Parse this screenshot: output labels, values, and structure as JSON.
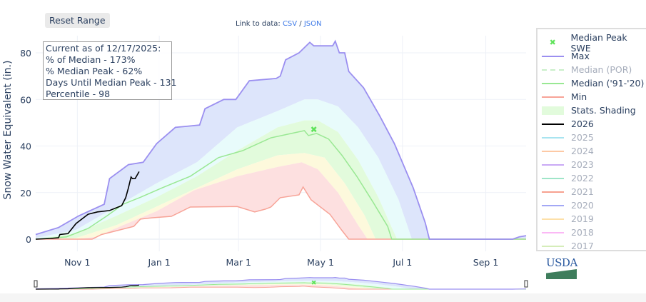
{
  "controls": {
    "reset_label": "Reset Range"
  },
  "links": {
    "prefix": "Link to data: ",
    "csv": "CSV",
    "sep": " / ",
    "json": "JSON"
  },
  "infobox": {
    "lines": [
      "Current as of 12/17/2025:",
      "% of Median - 173%",
      "% Median Peak - 62%",
      "Days Until Median Peak - 131",
      "Percentile - 98"
    ]
  },
  "logo": {
    "text": "USDA"
  },
  "legend": [
    {
      "label": "Median Peak SWE",
      "color": "#5fe35a",
      "kind": "marker",
      "dim": false
    },
    {
      "label": "Max",
      "color": "#9b8ff0",
      "kind": "line",
      "dim": false
    },
    {
      "label": "Median (POR)",
      "color": "#c9efc9",
      "kind": "dash",
      "dim": true
    },
    {
      "label": "Median ('91-'20)",
      "color": "#99e893",
      "kind": "line",
      "dim": false
    },
    {
      "label": "Min",
      "color": "#f7a397",
      "kind": "line",
      "dim": false
    },
    {
      "label": "Stats. Shading",
      "color": "#e2fbdc",
      "kind": "fill",
      "dim": false
    },
    {
      "label": "2026",
      "color": "#000000",
      "kind": "line",
      "dim": false
    },
    {
      "label": "2025",
      "color": "#a8e4f0",
      "kind": "line",
      "dim": true
    },
    {
      "label": "2024",
      "color": "#fdc9a5",
      "kind": "line",
      "dim": true
    },
    {
      "label": "2023",
      "color": "#c9a9f5",
      "kind": "line",
      "dim": true
    },
    {
      "label": "2022",
      "color": "#9fe5c8",
      "kind": "line",
      "dim": true
    },
    {
      "label": "2021",
      "color": "#f7a190",
      "kind": "line",
      "dim": true
    },
    {
      "label": "2020",
      "color": "#a3a8f5",
      "kind": "line",
      "dim": true
    },
    {
      "label": "2019",
      "color": "#fde0a8",
      "kind": "line",
      "dim": true
    },
    {
      "label": "2018",
      "color": "#fbb8f5",
      "kind": "line",
      "dim": true
    },
    {
      "label": "2017",
      "color": "#d5edb9",
      "kind": "line",
      "dim": true
    }
  ],
  "chart_data": {
    "type": "area",
    "title": "",
    "xlabel": "",
    "ylabel": "Snow Water Equivalent (in.)",
    "x_unit": "days since Oct 1",
    "xlim": [
      0,
      365
    ],
    "ylim": [
      0,
      88
    ],
    "yticks": [
      0,
      20,
      40,
      60,
      80
    ],
    "xticks": [
      {
        "day": 31,
        "label": "Nov 1"
      },
      {
        "day": 92,
        "label": "Jan 1"
      },
      {
        "day": 151,
        "label": "Mar 1"
      },
      {
        "day": 212,
        "label": "May 1"
      },
      {
        "day": 273,
        "label": "Jul 1"
      },
      {
        "day": 335,
        "label": "Sep 1"
      }
    ],
    "grid": true,
    "legend_position": "right",
    "bands": [
      {
        "name": "max-p90",
        "color": "#dde5fb"
      },
      {
        "name": "p90-p70",
        "color": "#e8fbfb"
      },
      {
        "name": "p70-p30",
        "color": "#e2fbdc"
      },
      {
        "name": "p30-p10",
        "color": "#fdf9dc"
      },
      {
        "name": "p10-min",
        "color": "#fde0e0"
      }
    ],
    "series": {
      "max": [
        [
          0,
          2
        ],
        [
          17,
          5
        ],
        [
          32,
          10
        ],
        [
          51,
          15
        ],
        [
          55,
          26
        ],
        [
          69,
          32
        ],
        [
          80,
          33
        ],
        [
          90,
          41
        ],
        [
          104,
          48
        ],
        [
          122,
          49
        ],
        [
          126,
          56
        ],
        [
          140,
          60
        ],
        [
          149,
          60
        ],
        [
          159,
          68
        ],
        [
          179,
          69
        ],
        [
          182,
          70
        ],
        [
          186,
          77
        ],
        [
          196,
          80
        ],
        [
          204,
          84.5
        ],
        [
          207,
          83
        ],
        [
          221,
          83
        ],
        [
          223,
          85
        ],
        [
          226,
          80
        ],
        [
          230,
          80
        ],
        [
          233,
          72
        ],
        [
          244,
          65
        ],
        [
          256,
          53
        ],
        [
          267,
          41
        ],
        [
          281,
          22
        ],
        [
          290,
          7
        ],
        [
          293,
          0
        ],
        [
          355,
          0
        ],
        [
          360,
          1
        ],
        [
          365,
          1.5
        ]
      ],
      "p90": [
        [
          0,
          0.5
        ],
        [
          30,
          4
        ],
        [
          60,
          14
        ],
        [
          90,
          24
        ],
        [
          120,
          33
        ],
        [
          150,
          48
        ],
        [
          180,
          55
        ],
        [
          200,
          60
        ],
        [
          210,
          60
        ],
        [
          225,
          57
        ],
        [
          240,
          48
        ],
        [
          255,
          35
        ],
        [
          270,
          17
        ],
        [
          280,
          0
        ],
        [
          365,
          0
        ]
      ],
      "p70": [
        [
          0,
          0
        ],
        [
          30,
          2.5
        ],
        [
          60,
          10
        ],
        [
          90,
          18
        ],
        [
          120,
          27
        ],
        [
          150,
          38
        ],
        [
          180,
          48
        ],
        [
          200,
          51
        ],
        [
          210,
          51
        ],
        [
          225,
          46
        ],
        [
          240,
          34
        ],
        [
          255,
          18
        ],
        [
          265,
          5
        ],
        [
          269,
          0
        ],
        [
          365,
          0
        ]
      ],
      "p30": [
        [
          0,
          0
        ],
        [
          30,
          0.5
        ],
        [
          60,
          6
        ],
        [
          90,
          14
        ],
        [
          120,
          22
        ],
        [
          150,
          30
        ],
        [
          180,
          36
        ],
        [
          200,
          37
        ],
        [
          215,
          35
        ],
        [
          230,
          24
        ],
        [
          245,
          10
        ],
        [
          253,
          0
        ],
        [
          365,
          0
        ]
      ],
      "p10": [
        [
          0,
          0
        ],
        [
          30,
          0
        ],
        [
          45,
          1
        ],
        [
          65,
          6
        ],
        [
          90,
          12
        ],
        [
          118,
          21
        ],
        [
          150,
          27
        ],
        [
          180,
          31
        ],
        [
          198,
          33
        ],
        [
          210,
          30
        ],
        [
          225,
          20
        ],
        [
          240,
          6
        ],
        [
          247,
          0
        ],
        [
          365,
          0
        ]
      ],
      "median": [
        [
          0,
          0
        ],
        [
          23,
          1
        ],
        [
          39,
          4.6
        ],
        [
          53,
          10
        ],
        [
          65,
          15
        ],
        [
          78,
          18
        ],
        [
          94,
          22
        ],
        [
          115,
          27
        ],
        [
          136,
          35
        ],
        [
          154,
          38
        ],
        [
          175,
          43.5
        ],
        [
          200,
          46.6
        ],
        [
          203,
          44.5
        ],
        [
          209,
          45.4
        ],
        [
          218,
          43
        ],
        [
          228,
          36
        ],
        [
          239,
          27
        ],
        [
          251,
          16
        ],
        [
          262,
          5.5
        ],
        [
          265,
          0
        ],
        [
          365,
          0
        ]
      ],
      "min": [
        [
          0,
          0
        ],
        [
          42,
          0
        ],
        [
          49,
          2
        ],
        [
          73,
          5.5
        ],
        [
          78,
          8.6
        ],
        [
          87,
          9.2
        ],
        [
          101,
          9.8
        ],
        [
          115,
          13.8
        ],
        [
          150,
          14
        ],
        [
          163,
          11.7
        ],
        [
          171,
          12.9
        ],
        [
          175,
          13.8
        ],
        [
          182,
          17.8
        ],
        [
          196,
          19
        ],
        [
          199,
          22.4
        ],
        [
          205,
          16.9
        ],
        [
          219,
          10.7
        ],
        [
          228,
          3.7
        ],
        [
          233,
          0
        ],
        [
          365,
          0
        ]
      ],
      "current_2026": [
        [
          0,
          0
        ],
        [
          11,
          0.3
        ],
        [
          17,
          0.6
        ],
        [
          18,
          2
        ],
        [
          24,
          2.4
        ],
        [
          30,
          6.7
        ],
        [
          39,
          10.7
        ],
        [
          46,
          11.7
        ],
        [
          55,
          12.3
        ],
        [
          64,
          14.4
        ],
        [
          67,
          17.8
        ],
        [
          69,
          22
        ],
        [
          71,
          26.7
        ],
        [
          72,
          26
        ],
        [
          74,
          26
        ],
        [
          77,
          29
        ]
      ]
    },
    "median_peak": {
      "day": 207,
      "value": 47
    }
  }
}
